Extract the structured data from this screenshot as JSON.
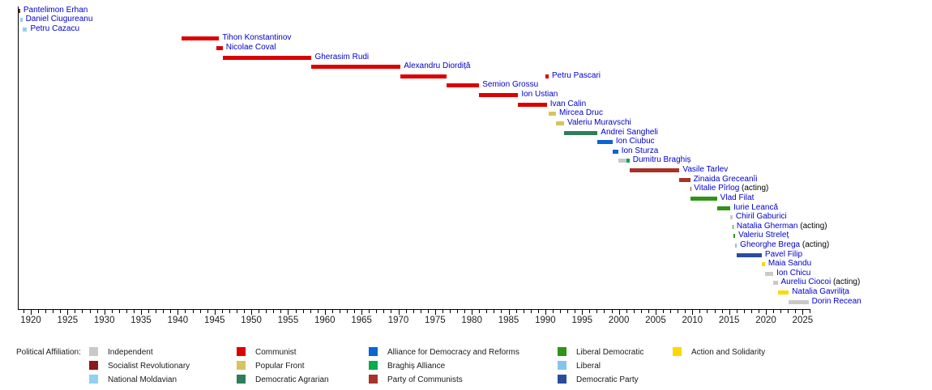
{
  "chart_data": {
    "type": "bar",
    "variant": "horizontal-timeline-gantt",
    "title": "",
    "xlabel": "",
    "ylabel": "",
    "x_axis": {
      "min_year": 1918.2,
      "max_year": 2026.1,
      "tick_labels": [
        1920,
        1925,
        1930,
        1935,
        1940,
        1945,
        1950,
        1955,
        1960,
        1965,
        1970,
        1975,
        1980,
        1985,
        1990,
        1995,
        2000,
        2005,
        2010,
        2015,
        2020,
        2025
      ],
      "minor_tick_step": 1,
      "major_tick_step": 5,
      "grid": false
    },
    "parties": {
      "independent": {
        "label": "Independent",
        "color": "#c9c9c9"
      },
      "socialist_revolutionary": {
        "label": "Socialist Revolutionary",
        "color": "#8b1a1a"
      },
      "national_moldavian": {
        "label": "National Moldavian",
        "color": "#90d0f2"
      },
      "communist": {
        "label": "Communist",
        "color": "#dc0000"
      },
      "popular_front": {
        "label": "Popular Front",
        "color": "#d6c45f"
      },
      "democratic_agrarian": {
        "label": "Democratic Agrarian",
        "color": "#2e7d5b"
      },
      "alliance_democracy_reforms": {
        "label": "Alliance for Democracy and Reforms",
        "color": "#0a64d2"
      },
      "braghis_alliance": {
        "label": "Braghiș Alliance",
        "color": "#0ca94f"
      },
      "party_of_communists": {
        "label": "Party of Communists",
        "color": "#a93226"
      },
      "liberal_democratic": {
        "label": "Liberal Democratic",
        "color": "#2f9414"
      },
      "liberal": {
        "label": "Liberal",
        "color": "#82c6ee"
      },
      "democratic_party": {
        "label": "Democratic Party",
        "color": "#2b4c9e"
      },
      "action_and_solidarity": {
        "label": "Action and Solidarity",
        "color": "#ffd800"
      }
    },
    "people": [
      {
        "name": "Pantelimon Erhan",
        "party": "socialist_revolutionary",
        "terms": [
          {
            "start": 1918.3,
            "end": 1918.55
          }
        ]
      },
      {
        "name": "Daniel Ciugureanu",
        "party": "national_moldavian",
        "terms": [
          {
            "start": 1918.55,
            "end": 1918.85
          }
        ]
      },
      {
        "name": "Petru Cazacu",
        "party": "national_moldavian",
        "terms": [
          {
            "start": 1918.85,
            "end": 1919.5
          }
        ]
      },
      {
        "name": "Tihon Konstantinov",
        "party": "communist",
        "terms": [
          {
            "start": 1940.5,
            "end": 1945.6
          }
        ]
      },
      {
        "name": "Nicolae Coval",
        "party": "communist",
        "terms": [
          {
            "start": 1945.3,
            "end": 1946.1
          }
        ]
      },
      {
        "name": "Gherasim Rudi",
        "party": "communist",
        "terms": [
          {
            "start": 1946.1,
            "end": 1958.2
          }
        ]
      },
      {
        "name": "Alexandru Diordiță",
        "party": "communist",
        "terms": [
          {
            "start": 1958.2,
            "end": 1970.3
          }
        ]
      },
      {
        "name": "Petru Pascari",
        "party": "communist",
        "terms": [
          {
            "start": 1970.3,
            "end": 1976.6
          },
          {
            "start": 1990.05,
            "end": 1990.45
          }
        ]
      },
      {
        "name": "Semion Grossu",
        "party": "communist",
        "terms": [
          {
            "start": 1976.6,
            "end": 1981.0
          }
        ]
      },
      {
        "name": "Ion Ustian",
        "party": "communist",
        "terms": [
          {
            "start": 1981.0,
            "end": 1986.3
          }
        ]
      },
      {
        "name": "Ivan Calin",
        "party": "communist",
        "terms": [
          {
            "start": 1986.3,
            "end": 1990.2
          }
        ]
      },
      {
        "name": "Mircea Druc",
        "party": "popular_front",
        "terms": [
          {
            "start": 1990.45,
            "end": 1991.45
          }
        ]
      },
      {
        "name": "Valeriu Muravschi",
        "party": "popular_front",
        "terms": [
          {
            "start": 1991.45,
            "end": 1992.55
          }
        ]
      },
      {
        "name": "Andrei Sangheli",
        "party": "democratic_agrarian",
        "terms": [
          {
            "start": 1992.55,
            "end": 1997.1
          }
        ]
      },
      {
        "name": "Ion Ciubuc",
        "party": "alliance_democracy_reforms",
        "terms": [
          {
            "start": 1997.1,
            "end": 1999.15
          }
        ]
      },
      {
        "name": "Ion Sturza",
        "party": "alliance_democracy_reforms",
        "terms": [
          {
            "start": 1999.15,
            "end": 1999.9
          }
        ]
      },
      {
        "name": "Dumitru Braghiș",
        "party": "independent",
        "terms": [
          {
            "start": 1999.95,
            "end": 2001.05
          },
          {
            "start": 2001.05,
            "end": 2001.45,
            "party": "braghis_alliance"
          }
        ]
      },
      {
        "name": "Vasile Tarlev",
        "party": "party_of_communists",
        "terms": [
          {
            "start": 2001.45,
            "end": 2008.25
          }
        ]
      },
      {
        "name": "Zinaida Greceanîi",
        "party": "party_of_communists",
        "terms": [
          {
            "start": 2008.25,
            "end": 2009.7
          }
        ]
      },
      {
        "name": "Vitalie Pîrlog",
        "suffix": " (acting)",
        "party": "party_of_communists",
        "terms": [
          {
            "start": 2009.7,
            "end": 2009.78
          }
        ]
      },
      {
        "name": "Vlad Filat",
        "party": "liberal_democratic",
        "terms": [
          {
            "start": 2009.78,
            "end": 2013.35
          }
        ]
      },
      {
        "name": "Iurie Leancă",
        "party": "liberal_democratic",
        "terms": [
          {
            "start": 2013.35,
            "end": 2015.15
          }
        ]
      },
      {
        "name": "Chiril Gaburici",
        "party": "independent",
        "terms": [
          {
            "start": 2015.15,
            "end": 2015.47
          }
        ]
      },
      {
        "name": "Natalia Gherman",
        "suffix": " (acting)",
        "party": "liberal_democratic",
        "terms": [
          {
            "start": 2015.47,
            "end": 2015.58
          }
        ]
      },
      {
        "name": "Valeriu Streleț",
        "party": "liberal_democratic",
        "terms": [
          {
            "start": 2015.58,
            "end": 2015.83
          }
        ]
      },
      {
        "name": "Gheorghe Brega",
        "suffix": " (acting)",
        "party": "liberal",
        "terms": [
          {
            "start": 2015.83,
            "end": 2016.05
          }
        ]
      },
      {
        "name": "Pavel Filip",
        "party": "democratic_party",
        "terms": [
          {
            "start": 2016.05,
            "end": 2019.44
          }
        ]
      },
      {
        "name": "Maia Sandu",
        "party": "action_and_solidarity",
        "terms": [
          {
            "start": 2019.44,
            "end": 2019.87
          }
        ]
      },
      {
        "name": "Ion Chicu",
        "party": "independent",
        "terms": [
          {
            "start": 2019.87,
            "end": 2021.0
          }
        ]
      },
      {
        "name": "Aureliu Ciocoi",
        "suffix": " (acting)",
        "party": "independent",
        "terms": [
          {
            "start": 2021.0,
            "end": 2021.6
          }
        ]
      },
      {
        "name": "Natalia Gavrilița",
        "party": "action_and_solidarity",
        "terms": [
          {
            "start": 2021.6,
            "end": 2023.12
          }
        ]
      },
      {
        "name": "Dorin Recean",
        "party": "independent",
        "terms": [
          {
            "start": 2023.12,
            "end": 2025.8
          }
        ]
      }
    ],
    "legend": {
      "title": "Political Affiliation:",
      "position": "bottom",
      "columns": [
        [
          "independent",
          "socialist_revolutionary",
          "national_moldavian"
        ],
        [
          "communist",
          "popular_front",
          "democratic_agrarian"
        ],
        [
          "alliance_democracy_reforms",
          "braghis_alliance",
          "party_of_communists"
        ],
        [
          "liberal_democratic",
          "liberal",
          "democratic_party"
        ],
        [
          "action_and_solidarity"
        ]
      ]
    }
  },
  "styles": {
    "name_link_color": "#0000cc",
    "acting_suffix_color": "#000000",
    "axis_color": "#000000",
    "tick_label_color": "#202020",
    "background": "#ffffff"
  }
}
